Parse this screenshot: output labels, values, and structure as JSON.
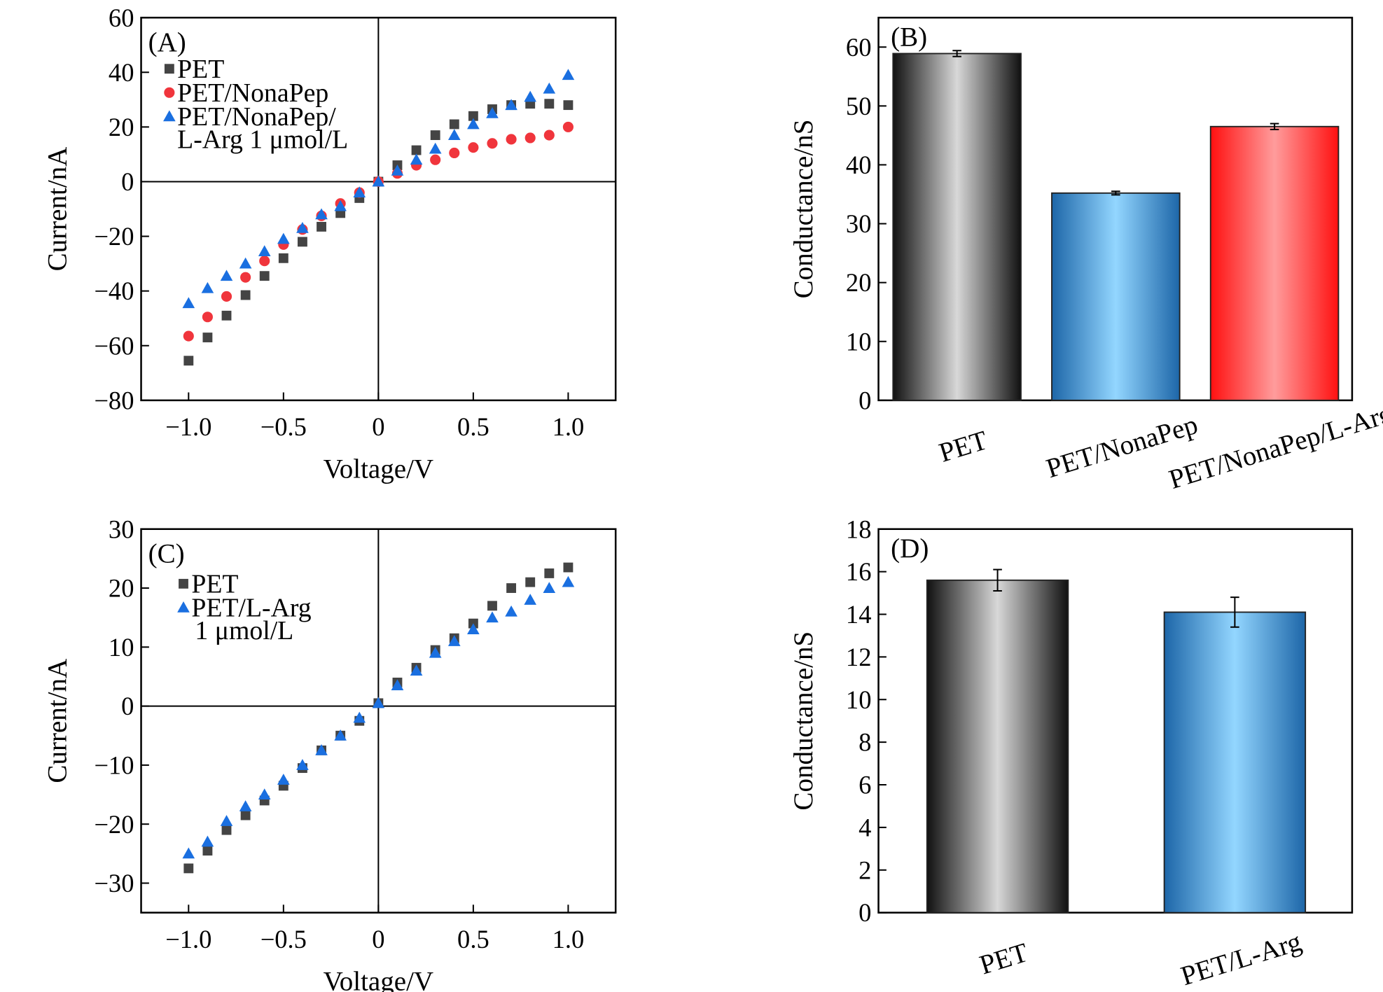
{
  "chart_data": [
    {
      "type": "scatter",
      "panel_label": "(A)",
      "xlabel": "Voltage/V",
      "ylabel": "Current/nA",
      "xlim": [
        -1.25,
        1.25
      ],
      "ylim": [
        -80,
        60
      ],
      "xticks": [
        -1.0,
        -0.5,
        0,
        0.5,
        1.0
      ],
      "xtick_labels": [
        "−1.0",
        "−0.5",
        "0",
        "0.5",
        "1.0"
      ],
      "yticks": [
        -80,
        -60,
        -40,
        -20,
        0,
        20,
        40,
        60
      ],
      "ytick_labels": [
        "−80",
        "−60",
        "−40",
        "−20",
        "0",
        "20",
        "40",
        "60"
      ],
      "legend_position": "top-left",
      "x": [
        -1.0,
        -0.9,
        -0.8,
        -0.7,
        -0.6,
        -0.5,
        -0.4,
        -0.3,
        -0.2,
        -0.1,
        0,
        0.1,
        0.2,
        0.3,
        0.4,
        0.5,
        0.6,
        0.7,
        0.8,
        0.9,
        1.0
      ],
      "series": [
        {
          "name": "PET",
          "marker": "square",
          "color": "#444444",
          "values": [
            -65.5,
            -57,
            -49,
            -41.5,
            -34.5,
            -28,
            -22,
            -16.5,
            -11.5,
            -6,
            0,
            6,
            11.5,
            17,
            21,
            24,
            26.5,
            28,
            28.5,
            28.5,
            28
          ]
        },
        {
          "name": "PET/NonaPep",
          "marker": "circle",
          "color": "#f0353c",
          "values": [
            -56.5,
            -49.5,
            -42,
            -35,
            -29,
            -23,
            -17.5,
            -12.5,
            -8,
            -4,
            0,
            3,
            6,
            8,
            10.5,
            12.5,
            14,
            15.5,
            16,
            17,
            20
          ]
        },
        {
          "name": "PET/NonaPep/",
          "name_line2": "L-Arg 1 μmol/L",
          "marker": "triangle",
          "color": "#1a6fe0",
          "values": [
            -44.5,
            -39,
            -34.5,
            -30,
            -25.5,
            -21,
            -17,
            -12,
            -9,
            -4,
            0,
            4,
            8,
            12,
            17,
            21,
            25,
            28,
            31,
            34,
            39
          ]
        }
      ]
    },
    {
      "type": "bar",
      "panel_label": "(B)",
      "ylabel": "Conductance/nS",
      "ylim": [
        0,
        65
      ],
      "yticks": [
        0,
        10,
        20,
        30,
        40,
        50,
        60
      ],
      "ytick_labels": [
        "0",
        "10",
        "20",
        "30",
        "40",
        "50",
        "60"
      ],
      "categories": [
        "PET",
        "PET/NonaPep",
        "PET/NonaPep/L-Arg"
      ],
      "values": [
        58.9,
        35.2,
        46.5
      ],
      "errors": [
        0.5,
        0.3,
        0.5
      ],
      "colors": [
        "#000000",
        "#1f6fb0",
        "#ff1010"
      ]
    },
    {
      "type": "scatter",
      "panel_label": "(C)",
      "xlabel": "Voltage/V",
      "ylabel": "Current/nA",
      "xlim": [
        -1.25,
        1.25
      ],
      "ylim": [
        -35,
        30
      ],
      "xticks": [
        -1.0,
        -0.5,
        0,
        0.5,
        1.0
      ],
      "xtick_labels": [
        "−1.0",
        "−0.5",
        "0",
        "0.5",
        "1.0"
      ],
      "yticks": [
        -30,
        -20,
        -10,
        0,
        10,
        20,
        30
      ],
      "ytick_labels": [
        "−30",
        "−20",
        "−10",
        "0",
        "10",
        "20",
        "30"
      ],
      "legend_position": "top-left",
      "x": [
        -1.0,
        -0.9,
        -0.8,
        -0.7,
        -0.6,
        -0.5,
        -0.4,
        -0.3,
        -0.2,
        -0.1,
        0,
        0.1,
        0.2,
        0.3,
        0.4,
        0.5,
        0.6,
        0.7,
        0.8,
        0.9,
        1.0
      ],
      "series": [
        {
          "name": "PET",
          "marker": "square",
          "color": "#444444",
          "values": [
            -27.5,
            -24.5,
            -21,
            -18.5,
            -16,
            -13.5,
            -10.5,
            -7.5,
            -5,
            -2.5,
            0.5,
            4,
            6.5,
            9.5,
            11.5,
            14,
            17,
            20,
            21,
            22.5,
            23.5
          ]
        },
        {
          "name": "PET/L-Arg",
          "name_line2": "1 μmol/L",
          "marker": "triangle",
          "color": "#1a6fe0",
          "values": [
            -25,
            -23,
            -19.5,
            -17,
            -15,
            -12.5,
            -10,
            -7.5,
            -5,
            -2,
            0.5,
            3.5,
            6,
            9,
            11,
            13,
            15,
            16,
            18,
            20,
            21
          ]
        }
      ]
    },
    {
      "type": "bar",
      "panel_label": "(D)",
      "ylabel": "Conductance/nS",
      "ylim": [
        0,
        18
      ],
      "yticks": [
        0,
        2,
        4,
        6,
        8,
        10,
        12,
        14,
        16,
        18
      ],
      "ytick_labels": [
        "0",
        "2",
        "4",
        "6",
        "8",
        "10",
        "12",
        "14",
        "16",
        "18"
      ],
      "categories": [
        "PET",
        "PET/L-Arg"
      ],
      "values": [
        15.6,
        14.1
      ],
      "errors": [
        0.5,
        0.7
      ],
      "colors": [
        "#000000",
        "#1f6fb0"
      ]
    }
  ]
}
